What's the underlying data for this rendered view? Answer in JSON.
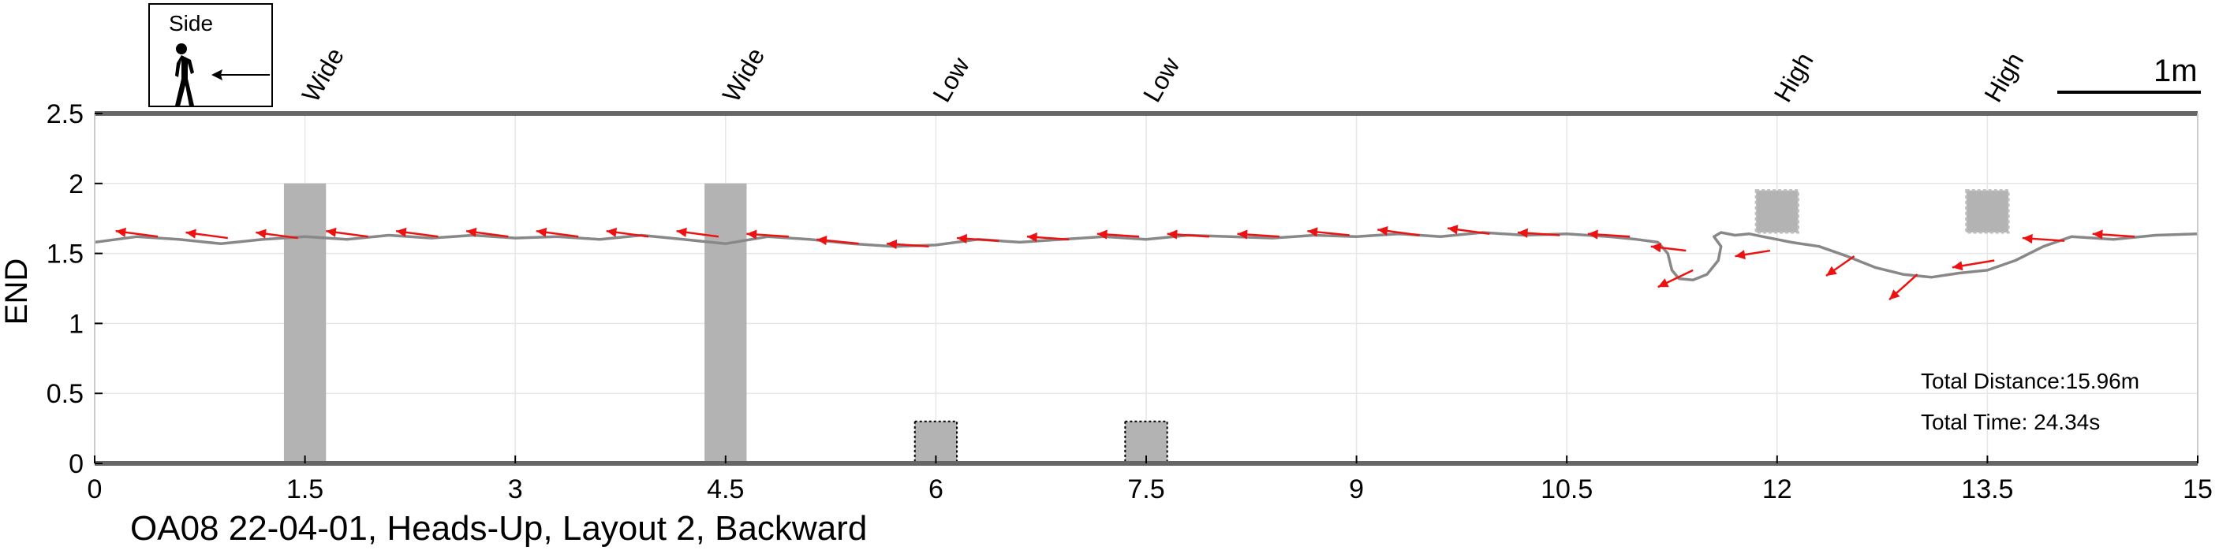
{
  "chart_data": {
    "type": "line",
    "title": "",
    "caption": "OA08 22-04-01, Heads-Up, Layout 2, Backward",
    "xlabel": "",
    "ylabel": "END",
    "xlim": [
      0,
      15
    ],
    "ylim": [
      0,
      2.5
    ],
    "xticks": [
      0,
      1.5,
      3,
      4.5,
      6,
      7.5,
      9,
      10.5,
      12,
      13.5,
      15
    ],
    "xtick_labels": [
      "0",
      "1.5",
      "3",
      "4.5",
      "6",
      "7.5",
      "9",
      "10.5",
      "12",
      "13.5",
      "15"
    ],
    "yticks": [
      0,
      0.5,
      1,
      1.5,
      2,
      2.5
    ],
    "ytick_labels": [
      "0",
      "0.5",
      "1",
      "1.5",
      "2",
      "2.5"
    ],
    "grid": true,
    "colors": {
      "path": "#888888",
      "arrow": "#ee1111",
      "obstacle": "#b3b3b3"
    },
    "legend": {
      "title": "Side",
      "icon": "walking-person-icon",
      "arrow_icon": "left-arrow-icon",
      "placement": "top-left"
    },
    "scale_bar": {
      "label": "1m",
      "length_m": 1
    },
    "stats": {
      "distance": "Total Distance:15.96m",
      "time": "Total Time: 24.34s"
    },
    "obstacles": [
      {
        "label": "Wide",
        "x": [
          1.35,
          1.65
        ],
        "y": [
          0,
          2
        ],
        "style": "wide"
      },
      {
        "label": "Wide",
        "x": [
          4.35,
          4.65
        ],
        "y": [
          0,
          2
        ],
        "style": "wide"
      },
      {
        "label": "Low",
        "x": [
          5.85,
          6.15
        ],
        "y": [
          0,
          0.3
        ],
        "style": "low"
      },
      {
        "label": "Low",
        "x": [
          7.35,
          7.65
        ],
        "y": [
          0,
          0.3
        ],
        "style": "low"
      },
      {
        "label": "High",
        "x": [
          11.85,
          12.15
        ],
        "y": [
          1.65,
          1.95
        ],
        "style": "high"
      },
      {
        "label": "High",
        "x": [
          13.35,
          13.65
        ],
        "y": [
          1.65,
          1.95
        ],
        "style": "high"
      }
    ],
    "series": [
      {
        "x": [
          0,
          0.3,
          0.6,
          0.9,
          1.2,
          1.5,
          1.8,
          2.1,
          2.4,
          2.7,
          3.0,
          3.3,
          3.6,
          3.9,
          4.2,
          4.5,
          4.8,
          5.1,
          5.4,
          5.7,
          6.0,
          6.3,
          6.6,
          6.9,
          7.2,
          7.5,
          7.8,
          8.1,
          8.4,
          8.7,
          9.0,
          9.3,
          9.6,
          9.9,
          10.2,
          10.5,
          10.8,
          11.0,
          11.15,
          11.22,
          11.25,
          11.3,
          11.4,
          11.5,
          11.58,
          11.6,
          11.55,
          11.6,
          11.7,
          11.8,
          11.9,
          12.0,
          12.1,
          12.3,
          12.5,
          12.7,
          12.9,
          13.1,
          13.3,
          13.5,
          13.7,
          13.9,
          14.1,
          14.4,
          14.7,
          15.0
        ],
        "y": [
          1.58,
          1.62,
          1.6,
          1.57,
          1.6,
          1.62,
          1.6,
          1.63,
          1.61,
          1.63,
          1.61,
          1.62,
          1.6,
          1.63,
          1.6,
          1.57,
          1.62,
          1.6,
          1.57,
          1.55,
          1.56,
          1.6,
          1.58,
          1.6,
          1.62,
          1.6,
          1.63,
          1.62,
          1.61,
          1.63,
          1.62,
          1.64,
          1.62,
          1.65,
          1.63,
          1.64,
          1.62,
          1.6,
          1.58,
          1.5,
          1.38,
          1.32,
          1.31,
          1.35,
          1.45,
          1.55,
          1.62,
          1.65,
          1.63,
          1.64,
          1.62,
          1.6,
          1.58,
          1.55,
          1.48,
          1.4,
          1.35,
          1.33,
          1.36,
          1.38,
          1.45,
          1.55,
          1.62,
          1.6,
          1.63,
          1.64
        ]
      }
    ],
    "direction_arrows": [
      {
        "x": 0.45,
        "y": 1.62,
        "dx": -0.3,
        "dy": 0.04
      },
      {
        "x": 0.95,
        "y": 1.61,
        "dx": -0.3,
        "dy": 0.04
      },
      {
        "x": 1.45,
        "y": 1.61,
        "dx": -0.3,
        "dy": 0.04
      },
      {
        "x": 1.95,
        "y": 1.62,
        "dx": -0.3,
        "dy": 0.04
      },
      {
        "x": 2.45,
        "y": 1.62,
        "dx": -0.3,
        "dy": 0.04
      },
      {
        "x": 2.95,
        "y": 1.62,
        "dx": -0.3,
        "dy": 0.04
      },
      {
        "x": 3.45,
        "y": 1.62,
        "dx": -0.3,
        "dy": 0.04
      },
      {
        "x": 3.95,
        "y": 1.62,
        "dx": -0.3,
        "dy": 0.04
      },
      {
        "x": 4.45,
        "y": 1.62,
        "dx": -0.3,
        "dy": 0.04
      },
      {
        "x": 4.95,
        "y": 1.62,
        "dx": -0.3,
        "dy": 0.02
      },
      {
        "x": 5.45,
        "y": 1.57,
        "dx": -0.3,
        "dy": 0.03
      },
      {
        "x": 5.95,
        "y": 1.55,
        "dx": -0.3,
        "dy": 0.02
      },
      {
        "x": 6.45,
        "y": 1.59,
        "dx": -0.3,
        "dy": 0.02
      },
      {
        "x": 6.95,
        "y": 1.6,
        "dx": -0.3,
        "dy": 0.02
      },
      {
        "x": 7.45,
        "y": 1.62,
        "dx": -0.3,
        "dy": 0.02
      },
      {
        "x": 7.95,
        "y": 1.62,
        "dx": -0.3,
        "dy": 0.02
      },
      {
        "x": 8.45,
        "y": 1.62,
        "dx": -0.3,
        "dy": 0.02
      },
      {
        "x": 8.95,
        "y": 1.63,
        "dx": -0.3,
        "dy": 0.03
      },
      {
        "x": 9.45,
        "y": 1.63,
        "dx": -0.3,
        "dy": 0.04
      },
      {
        "x": 9.95,
        "y": 1.64,
        "dx": -0.3,
        "dy": 0.04
      },
      {
        "x": 10.45,
        "y": 1.63,
        "dx": -0.3,
        "dy": 0.02
      },
      {
        "x": 10.95,
        "y": 1.62,
        "dx": -0.3,
        "dy": 0.02
      },
      {
        "x": 11.35,
        "y": 1.52,
        "dx": -0.25,
        "dy": 0.03
      },
      {
        "x": 11.4,
        "y": 1.38,
        "dx": -0.25,
        "dy": -0.12
      },
      {
        "x": 11.95,
        "y": 1.52,
        "dx": -0.25,
        "dy": -0.04
      },
      {
        "x": 12.55,
        "y": 1.48,
        "dx": -0.2,
        "dy": -0.14
      },
      {
        "x": 13.0,
        "y": 1.35,
        "dx": -0.2,
        "dy": -0.18
      },
      {
        "x": 13.55,
        "y": 1.45,
        "dx": -0.3,
        "dy": -0.05
      },
      {
        "x": 14.05,
        "y": 1.59,
        "dx": -0.3,
        "dy": 0.02
      },
      {
        "x": 14.55,
        "y": 1.62,
        "dx": -0.3,
        "dy": 0.02
      }
    ]
  }
}
